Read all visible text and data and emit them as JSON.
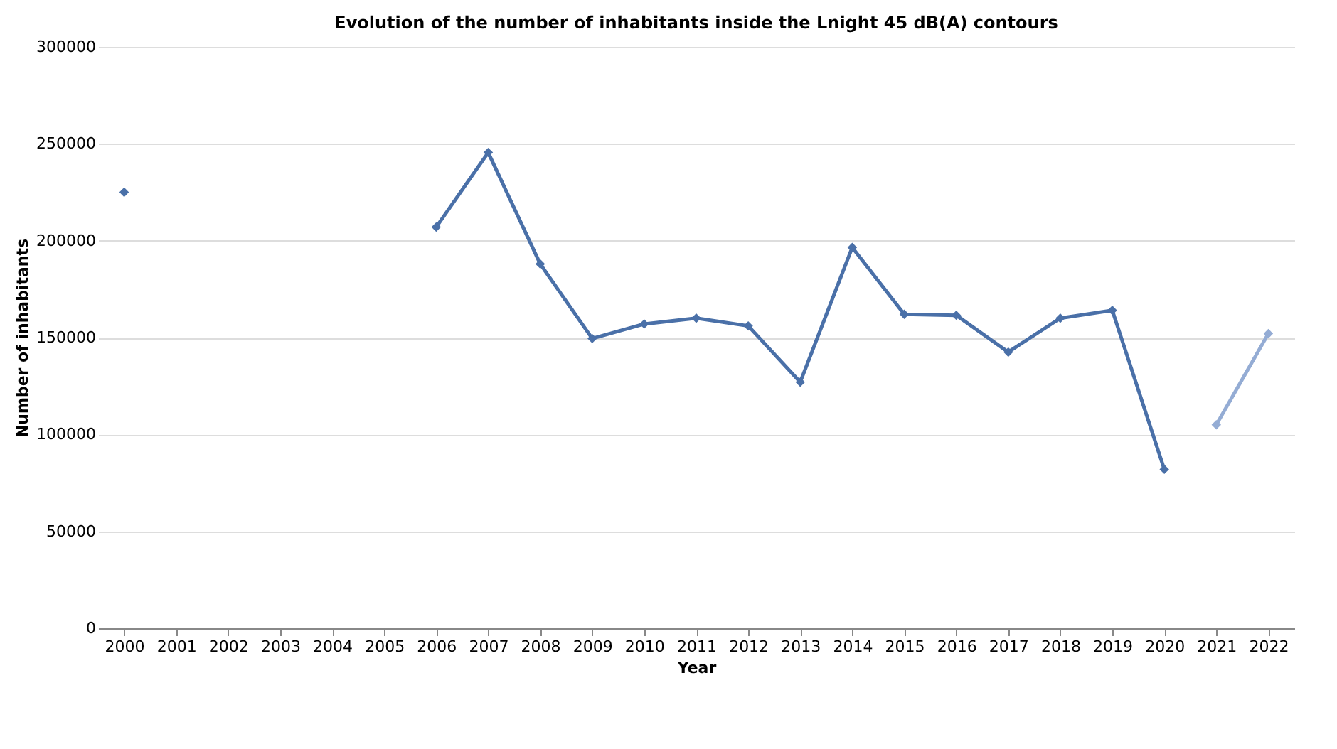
{
  "chart_data": {
    "type": "line",
    "title": "Evolution of the number of inhabitants inside the Lnight 45 dB(A) contours",
    "xlabel": "Year",
    "ylabel": "Number of inhabitants",
    "categories": [
      "2000",
      "2001",
      "2002",
      "2003",
      "2004",
      "2005",
      "2006",
      "2007",
      "2008",
      "2009",
      "2010",
      "2011",
      "2012",
      "2013",
      "2014",
      "2015",
      "2016",
      "2017",
      "2018",
      "2019",
      "2020",
      "2021",
      "2022"
    ],
    "series": [
      {
        "color": "#4a70a8",
        "values": [
          225000,
          null,
          null,
          null,
          null,
          null,
          207000,
          245500,
          188000,
          149500,
          157000,
          160000,
          156000,
          127000,
          196500,
          162000,
          161500,
          142500,
          160000,
          164000,
          82000,
          null,
          null
        ]
      },
      {
        "color": "#94acd4",
        "values": [
          null,
          null,
          null,
          null,
          null,
          null,
          null,
          null,
          null,
          null,
          null,
          null,
          null,
          null,
          null,
          null,
          null,
          null,
          null,
          null,
          null,
          105000,
          152000
        ]
      }
    ],
    "ylim": [
      0,
      300000
    ],
    "yticks": [
      0,
      50000,
      100000,
      150000,
      200000,
      250000,
      300000
    ],
    "grid": "y",
    "marker": "diamond",
    "line_style": "solid",
    "legend": false
  }
}
